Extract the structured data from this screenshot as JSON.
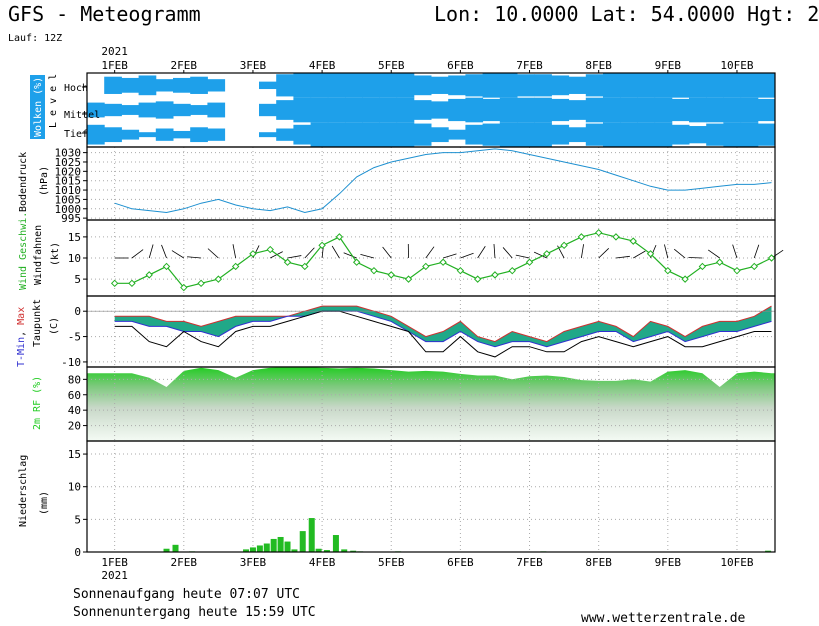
{
  "header": {
    "title": "GFS - Meteogramm",
    "location": "Lon: 10.0000 Lat: 54.0000 Hgt: 2",
    "run": "Lauf: 12Z",
    "year_top": "2021",
    "year_bottom": "2021"
  },
  "footer": {
    "sunrise": "Sonnenaufgang heute 07:07 UTC",
    "sunset": "Sonnenuntergang heute 15:59 UTC",
    "site": "www.wetterzentrale.de"
  },
  "colors": {
    "cloud": "#1ea0ea",
    "pressure": "#1e90d0",
    "wind": "#22b022",
    "tmin": "#3030d0",
    "tmax": "#d03030",
    "band": "#20a888",
    "rh": "#22cc22",
    "precip": "#22bb22"
  },
  "chart_data": [
    {
      "type": "heatmap",
      "name": "clouds",
      "ylabel": "Wolken (%)",
      "level_label": "Level",
      "levels": [
        "Hoch",
        "Mittel",
        "Tief"
      ],
      "categories": [
        "1FEB",
        "2FEB",
        "3FEB",
        "4FEB",
        "5FEB",
        "6FEB",
        "7FEB",
        "8FEB",
        "9FEB",
        "10FEB"
      ],
      "x_days": [
        1,
        10.55
      ],
      "cover": {
        "Hoch": [
          0.0,
          0.7,
          0.6,
          0.8,
          0.5,
          0.6,
          0.7,
          0.5,
          0.0,
          0.0,
          0.3,
          0.9,
          1.0,
          1.0,
          1.0,
          1.0,
          1.0,
          1.0,
          1.0,
          0.8,
          0.7,
          0.8,
          0.9,
          1.0,
          1.0,
          0.9,
          0.9,
          0.8,
          0.7,
          0.9,
          1.0,
          1.0,
          1.0,
          1.0,
          1.0,
          1.0,
          1.0,
          1.0,
          1.0,
          1.0
        ],
        "Mittel": [
          0.6,
          0.5,
          0.4,
          0.6,
          0.7,
          0.5,
          0.4,
          0.6,
          0.0,
          0.0,
          0.5,
          0.8,
          1.0,
          1.0,
          1.0,
          1.0,
          1.0,
          1.0,
          1.0,
          0.8,
          0.7,
          0.9,
          1.0,
          0.9,
          1.0,
          1.0,
          1.0,
          0.9,
          0.8,
          1.0,
          1.0,
          1.0,
          1.0,
          1.0,
          0.9,
          1.0,
          1.0,
          1.0,
          1.0,
          0.9
        ],
        "Tief": [
          0.8,
          0.6,
          0.4,
          0.2,
          0.5,
          0.3,
          0.6,
          0.5,
          0.0,
          0.0,
          0.2,
          0.5,
          0.8,
          1.0,
          1.0,
          1.0,
          1.0,
          1.0,
          1.0,
          0.9,
          0.6,
          0.4,
          0.8,
          0.9,
          1.0,
          1.0,
          1.0,
          0.8,
          0.6,
          0.9,
          1.0,
          1.0,
          1.0,
          1.0,
          0.8,
          0.7,
          0.9,
          1.0,
          1.0,
          0.9
        ]
      }
    },
    {
      "type": "line",
      "name": "pressure",
      "ylabel": "Bodendruck",
      "unit": "(hPa)",
      "yticks": [
        995,
        1000,
        1005,
        1010,
        1015,
        1020,
        1025,
        1030
      ],
      "ylim": [
        994,
        1033
      ],
      "x": [
        1.0,
        1.25,
        1.5,
        1.75,
        2.0,
        2.25,
        2.5,
        2.75,
        3.0,
        3.25,
        3.5,
        3.75,
        4.0,
        4.25,
        4.5,
        4.75,
        5.0,
        5.25,
        5.5,
        5.75,
        6.0,
        6.25,
        6.5,
        6.75,
        7.0,
        7.25,
        7.5,
        7.75,
        8.0,
        8.25,
        8.5,
        8.75,
        9.0,
        9.25,
        9.5,
        9.75,
        10.0,
        10.25,
        10.5
      ],
      "values": [
        1003,
        1000,
        999,
        998,
        1000,
        1003,
        1005,
        1002,
        1000,
        999,
        1001,
        998,
        1000,
        1008,
        1017,
        1022,
        1025,
        1027,
        1029,
        1030,
        1030,
        1031,
        1032,
        1031,
        1029,
        1027,
        1025,
        1023,
        1021,
        1018,
        1015,
        1012,
        1010,
        1010,
        1011,
        1012,
        1013,
        1013,
        1014
      ]
    },
    {
      "type": "line",
      "name": "wind",
      "ylabel": "Wind Geschwi.",
      "ylabel2": "Windfahnen",
      "unit": "(kt)",
      "yticks": [
        5,
        10,
        15
      ],
      "ylim": [
        1,
        19
      ],
      "x": [
        1.0,
        1.25,
        1.5,
        1.75,
        2.0,
        2.25,
        2.5,
        2.75,
        3.0,
        3.25,
        3.5,
        3.75,
        4.0,
        4.25,
        4.5,
        4.75,
        5.0,
        5.25,
        5.5,
        5.75,
        6.0,
        6.25,
        6.5,
        6.75,
        7.0,
        7.25,
        7.5,
        7.75,
        8.0,
        8.25,
        8.5,
        8.75,
        9.0,
        9.25,
        9.5,
        9.75,
        10.0,
        10.25,
        10.5
      ],
      "values": [
        4,
        4,
        6,
        8,
        3,
        4,
        5,
        8,
        11,
        12,
        9,
        8,
        13,
        15,
        9,
        7,
        6,
        5,
        8,
        9,
        7,
        5,
        6,
        7,
        9,
        11,
        13,
        15,
        16,
        15,
        14,
        11,
        7,
        5,
        8,
        9,
        7,
        8,
        10
      ]
    },
    {
      "type": "line",
      "name": "temperature",
      "ylabel_parts": [
        "T-Min",
        "Max",
        "Taupunkt",
        "(C)"
      ],
      "yticks": [
        0,
        -5,
        -10
      ],
      "ylim": [
        -11,
        3
      ],
      "x": [
        1.0,
        1.25,
        1.5,
        1.75,
        2.0,
        2.25,
        2.5,
        2.75,
        3.0,
        3.25,
        3.5,
        3.75,
        4.0,
        4.25,
        4.5,
        4.75,
        5.0,
        5.25,
        5.5,
        5.75,
        6.0,
        6.25,
        6.5,
        6.75,
        7.0,
        7.25,
        7.5,
        7.75,
        8.0,
        8.25,
        8.5,
        8.75,
        9.0,
        9.25,
        9.5,
        9.75,
        10.0,
        10.25,
        10.5
      ],
      "series": [
        {
          "name": "T-Max",
          "values": [
            -1,
            -1,
            -1,
            -2,
            -2,
            -3,
            -2,
            -1,
            -1,
            -1,
            -1,
            0,
            1,
            1,
            1,
            0,
            -1,
            -3,
            -5,
            -4,
            -2,
            -5,
            -6,
            -4,
            -5,
            -6,
            -4,
            -3,
            -2,
            -3,
            -5,
            -2,
            -3,
            -5,
            -3,
            -2,
            -2,
            -1,
            1
          ]
        },
        {
          "name": "T-Min",
          "values": [
            -2,
            -2,
            -3,
            -3,
            -4,
            -4,
            -5,
            -3,
            -2,
            -2,
            -1,
            -1,
            0,
            0,
            0,
            -1,
            -2,
            -4,
            -6,
            -6,
            -4,
            -6,
            -7,
            -6,
            -6,
            -7,
            -6,
            -5,
            -4,
            -4,
            -6,
            -5,
            -4,
            -6,
            -5,
            -4,
            -4,
            -3,
            -2
          ]
        },
        {
          "name": "Taupunkt",
          "values": [
            -3,
            -3,
            -6,
            -7,
            -4,
            -6,
            -7,
            -4,
            -3,
            -3,
            -2,
            -1,
            0,
            0,
            -1,
            -2,
            -3,
            -4,
            -8,
            -8,
            -5,
            -8,
            -9,
            -7,
            -7,
            -8,
            -8,
            -6,
            -5,
            -6,
            -7,
            -6,
            -5,
            -7,
            -7,
            -6,
            -5,
            -4,
            -4
          ]
        }
      ]
    },
    {
      "type": "area",
      "name": "humidity",
      "ylabel": "2m RF (%)",
      "yticks": [
        20,
        40,
        60,
        80
      ],
      "ylim": [
        0,
        96
      ],
      "x": [
        1.0,
        1.25,
        1.5,
        1.75,
        2.0,
        2.25,
        2.5,
        2.75,
        3.0,
        3.25,
        3.5,
        3.75,
        4.0,
        4.25,
        4.5,
        4.75,
        5.0,
        5.25,
        5.5,
        5.75,
        6.0,
        6.25,
        6.5,
        6.75,
        7.0,
        7.25,
        7.5,
        7.75,
        8.0,
        8.25,
        8.5,
        8.75,
        9.0,
        9.25,
        9.5,
        9.75,
        10.0,
        10.25,
        10.5
      ],
      "values": [
        88,
        88,
        82,
        70,
        91,
        95,
        92,
        82,
        92,
        95,
        96,
        96,
        95,
        94,
        95,
        94,
        92,
        90,
        91,
        90,
        87,
        85,
        85,
        80,
        84,
        85,
        83,
        79,
        78,
        78,
        80,
        77,
        90,
        92,
        88,
        70,
        88,
        90,
        88
      ]
    },
    {
      "type": "bar",
      "name": "precip",
      "ylabel": "Niederschlag",
      "unit": "(mm)",
      "yticks": [
        0,
        5,
        10,
        15
      ],
      "ylim": [
        0,
        17
      ],
      "x": [
        1.75,
        1.88,
        2.0,
        2.12,
        2.25,
        2.9,
        3.0,
        3.1,
        3.2,
        3.3,
        3.4,
        3.5,
        3.6,
        3.72,
        3.85,
        3.95,
        4.07,
        4.2,
        4.32,
        4.45,
        4.55,
        5.1,
        7.2,
        9.4,
        10.45
      ],
      "values": [
        0.5,
        1.1,
        0.0,
        0.1,
        0.05,
        0.4,
        0.7,
        1.0,
        1.3,
        2.0,
        2.3,
        1.6,
        0.4,
        3.2,
        5.2,
        0.5,
        0.3,
        2.6,
        0.4,
        0.2,
        0.1,
        0.1,
        0.1,
        0.05,
        0.2
      ]
    }
  ]
}
